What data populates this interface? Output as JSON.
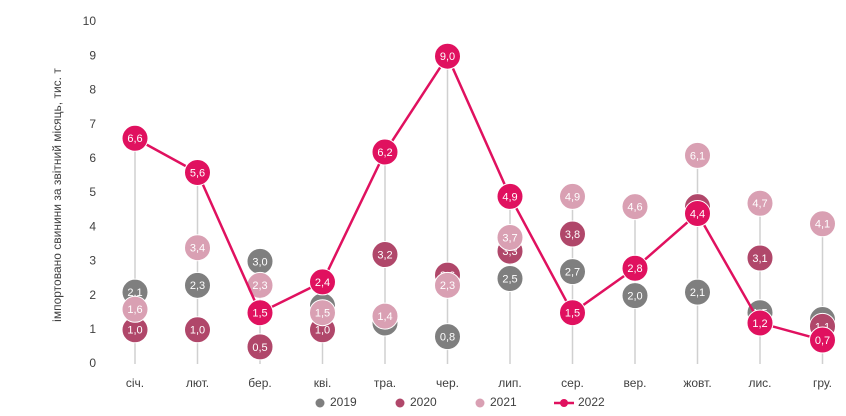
{
  "chart_data": {
    "type": "dot",
    "ylabel": "імпортовано свинини за звітний місяць, тис. т",
    "categories": [
      "січ.",
      "лют.",
      "бер.",
      "кві.",
      "тра.",
      "чер.",
      "лип.",
      "сер.",
      "вер.",
      "жовт.",
      "лис.",
      "гру."
    ],
    "ylim": [
      0,
      10
    ],
    "yticks": [
      0,
      1,
      2,
      3,
      4,
      5,
      6,
      7,
      8,
      9,
      10
    ],
    "grid": false,
    "legend": "bottom",
    "series": [
      {
        "name": "2019",
        "type": "scatter",
        "color": "#7f7f7f",
        "values": [
          2.1,
          2.3,
          3.0,
          1.7,
          1.2,
          0.8,
          2.5,
          2.7,
          2.0,
          2.1,
          1.5,
          1.3
        ],
        "value_labels": [
          "2,1",
          "2,3",
          "3,0",
          "1,7",
          "1,2",
          "0,8",
          "2,5",
          "2,7",
          "2,0",
          "2,1",
          "1,5",
          "1,3"
        ]
      },
      {
        "name": "2020",
        "type": "scatter",
        "color": "#b0476a",
        "values": [
          1.0,
          1.0,
          0.5,
          1.0,
          3.2,
          2.6,
          3.3,
          3.8,
          2.8,
          4.6,
          3.1,
          1.1
        ],
        "value_labels": [
          "1,0",
          "1,0",
          "0,5",
          "1,0",
          "3,2",
          "2,6",
          "3,3",
          "3,8",
          "2,8",
          "4,6",
          "3,1",
          "1,1"
        ]
      },
      {
        "name": "2021",
        "type": "scatter",
        "color": "#d9a0b3",
        "values": [
          1.6,
          3.4,
          2.3,
          1.5,
          1.4,
          2.3,
          3.7,
          4.9,
          4.6,
          6.1,
          4.7,
          4.1
        ],
        "value_labels": [
          "1,6",
          "3,4",
          "2,3",
          "1,5",
          "1,4",
          "2,3",
          "3,7",
          "4,9",
          "4,6",
          "6,1",
          "4,7",
          "4,1"
        ]
      },
      {
        "name": "2022",
        "type": "line",
        "color": "#e0115f",
        "values": [
          6.6,
          5.6,
          1.5,
          2.4,
          6.2,
          9.0,
          4.9,
          1.5,
          2.8,
          4.4,
          1.2,
          0.7
        ],
        "value_labels": [
          "6,6",
          "5,6",
          "1,5",
          "2,4",
          "6,2",
          "9,0",
          "4,9",
          "1,5",
          "2,8",
          "4,4",
          "1,2",
          "0,7"
        ]
      }
    ]
  }
}
